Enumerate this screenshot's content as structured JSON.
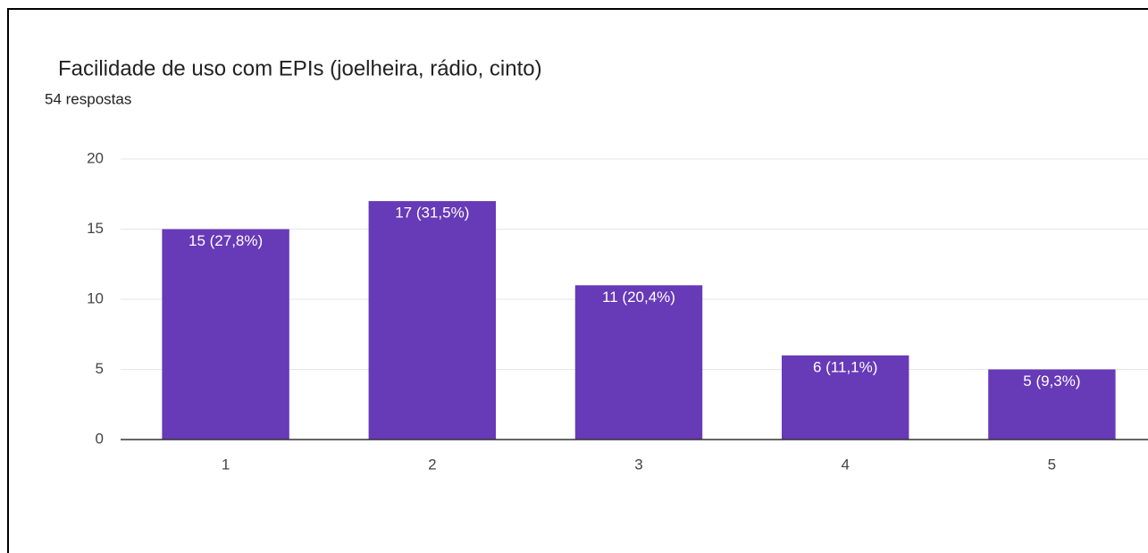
{
  "chart_data": {
    "type": "bar",
    "title": "Facilidade de uso com EPIs (joelheira, rádio, cinto)",
    "subtitle": "54 respostas",
    "categories": [
      "1",
      "2",
      "3",
      "4",
      "5"
    ],
    "values": [
      15,
      17,
      11,
      6,
      5
    ],
    "value_labels": [
      "15 (27,8%)",
      "17 (31,5%)",
      "11 (20,4%)",
      "6 (11,1%)",
      "5 (9,3%)"
    ],
    "color": "#673ab7",
    "ylim": [
      0,
      20
    ],
    "yticks": [
      0,
      5,
      10,
      15,
      20
    ],
    "grid": true
  }
}
